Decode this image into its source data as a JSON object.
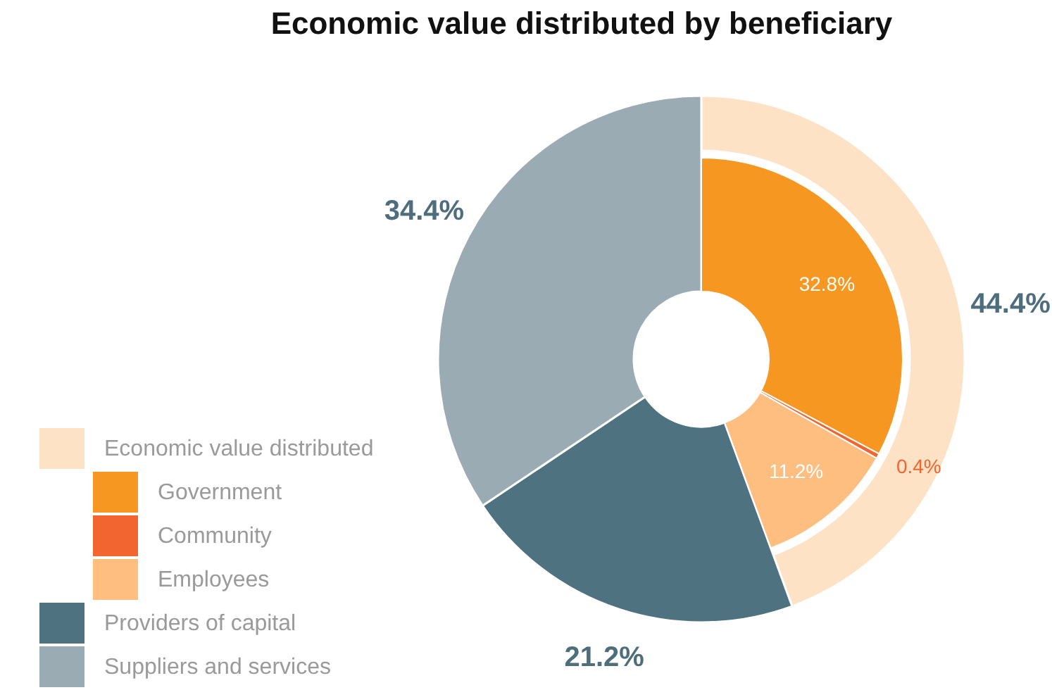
{
  "chart_data": {
    "type": "donut",
    "title": "Economic value distributed by beneficiary",
    "categories": [
      "Economic value distributed",
      "Government",
      "Community",
      "Employees",
      "Providers of capital",
      "Suppliers and services"
    ],
    "colors": [
      "#fde2c6",
      "#f69722",
      "#f26531",
      "#fdbe80",
      "#4e7280",
      "#9aabb3"
    ],
    "series": [
      {
        "values": [
          44.4,
          null,
          null,
          null,
          21.2,
          34.4
        ],
        "value_labels": [
          "44.4%",
          null,
          null,
          null,
          "21.2%",
          "34.4%"
        ]
      },
      {
        "values": [
          null,
          32.8,
          0.4,
          11.2,
          null,
          null
        ],
        "value_labels": [
          null,
          "32.8%",
          "0.4%",
          "11.2%",
          null,
          null
        ]
      }
    ],
    "legend": "bottom left"
  }
}
